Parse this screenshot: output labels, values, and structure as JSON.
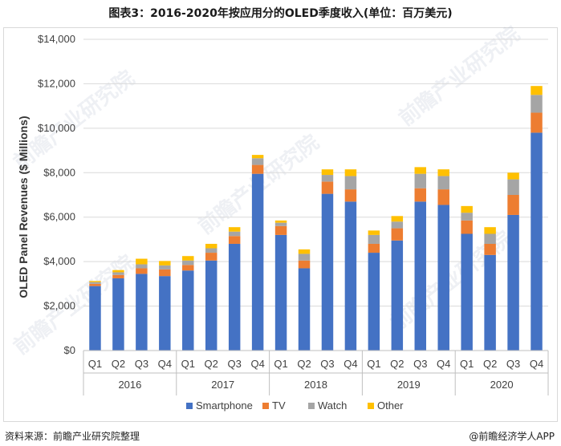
{
  "header": {
    "title": "图表3：2016-2020年按应用分的OLED季度收入(单位：百万美元)"
  },
  "footer": {
    "source": "资料来源：前瞻产业研究院整理",
    "brand": "@前瞻经济学人APP"
  },
  "watermark": "前瞻产业研究院",
  "colors": {
    "Smartphone": "#4472C4",
    "TV": "#ED7D31",
    "Watch": "#A5A5A5",
    "Other": "#FFC000"
  },
  "chart_data": {
    "type": "bar",
    "stacked": true,
    "ylabel": "OLED Panel Revenues ($ Millions)",
    "ylim": [
      0,
      14000
    ],
    "yticks": [
      "$0",
      "$2,000",
      "$4,000",
      "$6,000",
      "$8,000",
      "$10,000",
      "$12,000",
      "$14,000"
    ],
    "grid": true,
    "legend_position": "bottom",
    "years": [
      "2016",
      "2017",
      "2018",
      "2019",
      "2020"
    ],
    "quarters": [
      "Q1",
      "Q2",
      "Q3",
      "Q4"
    ],
    "series": [
      {
        "name": "Smartphone",
        "values": [
          2900,
          3250,
          3450,
          3350,
          3600,
          4050,
          4800,
          7950,
          5200,
          3700,
          7050,
          6700,
          4400,
          4950,
          6700,
          6550,
          5250,
          4300,
          6100,
          9800
        ]
      },
      {
        "name": "TV",
        "values": [
          100,
          150,
          250,
          300,
          250,
          350,
          350,
          400,
          400,
          350,
          550,
          550,
          400,
          550,
          600,
          700,
          600,
          500,
          900,
          900
        ]
      },
      {
        "name": "Watch",
        "values": [
          80,
          120,
          180,
          180,
          200,
          200,
          200,
          300,
          150,
          300,
          300,
          600,
          400,
          300,
          650,
          600,
          350,
          450,
          700,
          800
        ]
      },
      {
        "name": "Other",
        "values": [
          50,
          100,
          250,
          200,
          200,
          200,
          200,
          150,
          100,
          200,
          250,
          300,
          200,
          250,
          300,
          300,
          300,
          300,
          300,
          400
        ]
      }
    ]
  }
}
